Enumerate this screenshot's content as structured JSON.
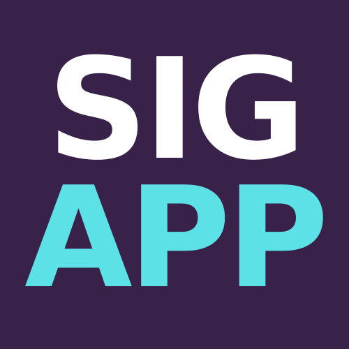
{
  "logo": {
    "line1": "SIG",
    "line2": "APP"
  },
  "colors": {
    "background": "#39224a",
    "line1": "#ffffff",
    "line2": "#5ce1e6"
  }
}
